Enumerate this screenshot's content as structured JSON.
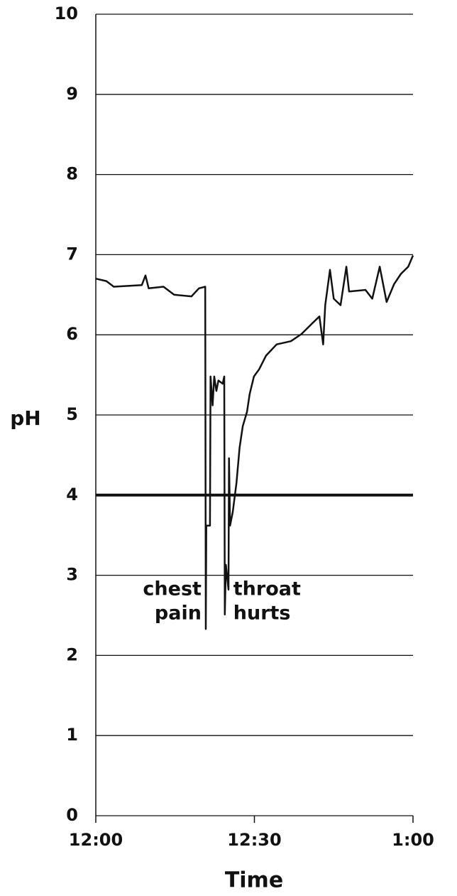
{
  "chart_data": {
    "type": "line",
    "xlabel": "Time",
    "ylabel": "pH",
    "x": [
      0,
      2,
      3.4,
      8.7,
      9.4,
      10,
      12.8,
      14.8,
      18.1,
      19.5,
      20.7,
      20.8,
      20.9,
      21.6,
      21.7,
      22.1,
      22.4,
      22.8,
      23.2,
      24.0,
      24.3,
      24.4,
      24.6,
      25.1,
      25.2,
      25.4,
      25.9,
      26.6,
      27.2,
      27.8,
      28.6,
      29.1,
      29.9,
      30.9,
      32.2,
      34.2,
      36.9,
      38.9,
      40.9,
      42.3,
      43.0,
      43.4,
      44.3,
      45.0,
      46.3,
      47.4,
      47.9,
      51.0,
      52.3,
      53.7,
      55.0,
      56.4,
      57.7,
      59.1,
      60
    ],
    "values": [
      6.7,
      6.67,
      6.6,
      6.62,
      6.74,
      6.58,
      6.6,
      6.5,
      6.48,
      6.58,
      6.6,
      2.33,
      3.62,
      3.62,
      5.48,
      5.12,
      5.48,
      5.3,
      5.43,
      5.39,
      5.48,
      2.51,
      3.13,
      2.82,
      4.46,
      3.62,
      3.79,
      4.15,
      4.59,
      4.86,
      5.04,
      5.26,
      5.48,
      5.57,
      5.74,
      5.88,
      5.92,
      6.01,
      6.14,
      6.23,
      5.88,
      6.37,
      6.81,
      6.45,
      6.37,
      6.85,
      6.54,
      6.56,
      6.45,
      6.85,
      6.41,
      6.63,
      6.76,
      6.85,
      6.99
    ],
    "color": "#111111",
    "xlim": [
      0,
      60
    ],
    "xticks": [
      {
        "value": 0,
        "label": "12:00"
      },
      {
        "value": 30,
        "label": "12:30"
      },
      {
        "value": 60,
        "label": "1:00"
      }
    ],
    "ylim": [
      0,
      10
    ],
    "yticks": [
      0,
      1,
      2,
      3,
      4,
      5,
      6,
      7,
      8,
      9,
      10
    ],
    "grid": true,
    "reference_line": 4,
    "annotations": [
      {
        "lines": [
          "chest",
          "pain"
        ],
        "x": 20.8
      },
      {
        "lines": [
          "throat",
          "hurts"
        ],
        "x": 24.4
      }
    ]
  }
}
